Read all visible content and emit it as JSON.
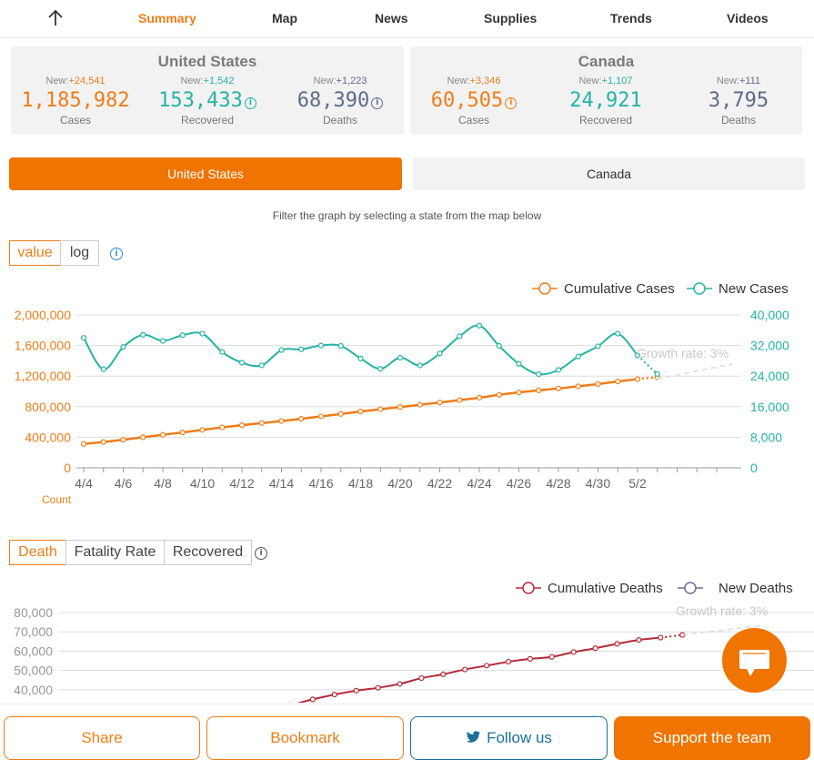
{
  "nav": {
    "back_icon": "arrow-up-icon",
    "tabs": [
      {
        "label": "Summary",
        "active": true
      },
      {
        "label": "Map",
        "active": false
      },
      {
        "label": "News",
        "active": false
      },
      {
        "label": "Supplies",
        "active": false
      },
      {
        "label": "Trends",
        "active": false
      },
      {
        "label": "Videos",
        "active": false
      }
    ]
  },
  "summary": {
    "new_prefix": "New:",
    "us": {
      "name": "United States",
      "cases": {
        "new": "+24,541",
        "value": "1,185,982",
        "label": "Cases"
      },
      "recovered": {
        "new": "+1,542",
        "value": "153,433",
        "label": "Recovered"
      },
      "deaths": {
        "new": "+1,223",
        "value": "68,390",
        "label": "Deaths"
      }
    },
    "canada": {
      "name": "Canada",
      "cases": {
        "new": "+3,346",
        "value": "60,505",
        "label": "Cases"
      },
      "recovered": {
        "new": "+1,107",
        "value": "24,921",
        "label": "Recovered"
      },
      "deaths": {
        "new": "+111",
        "value": "3,795",
        "label": "Deaths"
      }
    }
  },
  "country_toggle": {
    "selected": "United States",
    "options": [
      "United States",
      "Canada"
    ]
  },
  "filter_hint": "Filter the graph by selecting a state from the map below",
  "scale_toggle": {
    "options": [
      "value",
      "log"
    ],
    "selected": "value",
    "info_glyph": "i"
  },
  "death_toggle": {
    "options": [
      "Death",
      "Fatality Rate",
      "Recovered"
    ],
    "selected": "Death",
    "info_glyph": "i"
  },
  "colors": {
    "orange": "#ef7d18",
    "teal": "#26b3a5",
    "slate": "#5f6b8a",
    "crimson": "#b52a3a",
    "deathblue": "#6a6f94"
  },
  "chart_data": [
    {
      "type": "line",
      "legend": [
        "Cumulative Cases",
        "New Cases"
      ],
      "legend_position": "top-right",
      "x_ticks": [
        "4/4",
        "4/6",
        "4/8",
        "4/10",
        "4/12",
        "4/14",
        "4/16",
        "4/18",
        "4/20",
        "4/22",
        "4/24",
        "4/26",
        "4/28",
        "4/30",
        "5/2"
      ],
      "x_dates": [
        "4/4",
        "4/5",
        "4/6",
        "4/7",
        "4/8",
        "4/9",
        "4/10",
        "4/11",
        "4/12",
        "4/13",
        "4/14",
        "4/15",
        "4/16",
        "4/17",
        "4/18",
        "4/19",
        "4/20",
        "4/21",
        "4/22",
        "4/23",
        "4/24",
        "4/25",
        "4/26",
        "4/27",
        "4/28",
        "4/29",
        "4/30",
        "5/1",
        "5/2",
        "5/3"
      ],
      "y_left": {
        "ticks": [
          "0",
          "400,000",
          "800,000",
          "1,200,000",
          "1,600,000",
          "2,000,000"
        ],
        "range": [
          0,
          2000000
        ],
        "label": "Count"
      },
      "y_right": {
        "ticks": [
          "0",
          "8,000",
          "16,000",
          "24,000",
          "32,000",
          "40,000"
        ],
        "range": [
          0,
          40000
        ]
      },
      "series": [
        {
          "name": "Cumulative Cases",
          "axis": "left",
          "values": [
            312000,
            338000,
            367000,
            400000,
            432000,
            463000,
            496000,
            529000,
            558000,
            585000,
            612000,
            641000,
            672000,
            704000,
            737000,
            767000,
            795000,
            825000,
            854000,
            886000,
            917000,
            955000,
            987000,
            1013000,
            1038000,
            1066000,
            1096000,
            1130000,
            1160000,
            1185982
          ]
        },
        {
          "name": "New Cases",
          "axis": "right",
          "values": [
            34000,
            25800,
            31600,
            34800,
            33200,
            34700,
            35100,
            30300,
            27500,
            26800,
            30800,
            31000,
            32000,
            31900,
            28600,
            25900,
            28800,
            26800,
            29900,
            34400,
            37200,
            31900,
            27200,
            24500,
            25600,
            29100,
            31800,
            35100,
            29400,
            24541
          ]
        }
      ],
      "annotation": "Growth rate: 3%",
      "grid": true
    },
    {
      "type": "line",
      "legend": [
        "Cumulative Deaths",
        "New Deaths"
      ],
      "legend_position": "top-right",
      "y_left": {
        "ticks": [
          "40,000",
          "50,000",
          "60,000",
          "70,000",
          "80,000"
        ],
        "range": [
          30000,
          80000
        ]
      },
      "series": [
        {
          "name": "Cumulative Deaths",
          "values": [
            32000,
            35000,
            37500,
            39500,
            41000,
            43000,
            46000,
            48000,
            50500,
            52500,
            54500,
            56000,
            57000,
            59500,
            61500,
            63800,
            65800,
            67000,
            68390
          ]
        }
      ],
      "annotation": "Growth rate: 3%",
      "grid": true
    }
  ],
  "chat_icon": "chat-bubble-icon",
  "bottom": {
    "share": "Share",
    "bookmark": "Bookmark",
    "follow": "Follow us",
    "follow_icon": "twitter-bird-icon",
    "support": "Support the team"
  }
}
